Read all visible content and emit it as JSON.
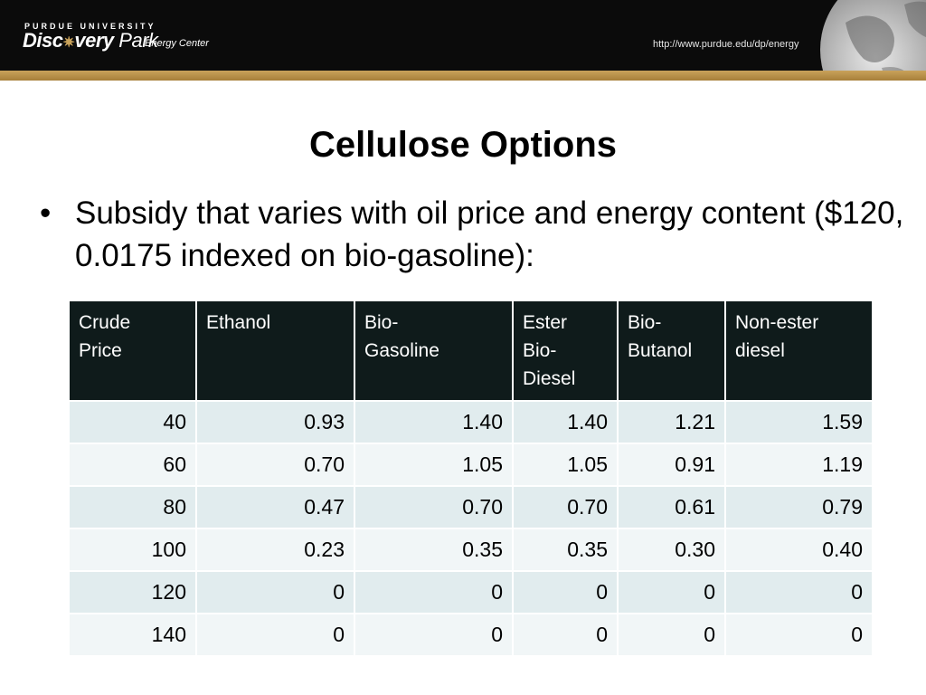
{
  "header": {
    "logo_top": "PURDUE UNIVERSITY",
    "logo_main_left": "Disc",
    "logo_main_right": "very",
    "logo_park": "Park",
    "logo_sub": "Energy Center",
    "url": "http://www.purdue.edu/dp/energy"
  },
  "slide": {
    "title": "Cellulose Options",
    "bullet": "Subsidy that varies with oil price and energy content ($120, 0.0175 indexed on bio-gasoline):"
  },
  "table": {
    "headers": [
      [
        "Crude",
        "Price"
      ],
      [
        "Ethanol"
      ],
      [
        "Bio-",
        "Gasoline"
      ],
      [
        "Ester",
        "Bio-",
        "Diesel"
      ],
      [
        "Bio-",
        "Butanol"
      ],
      [
        "Non-ester",
        "diesel"
      ]
    ],
    "rows": [
      [
        "40",
        "0.93",
        "1.40",
        "1.40",
        "1.21",
        "1.59"
      ],
      [
        "60",
        "0.70",
        "1.05",
        "1.05",
        "0.91",
        "1.19"
      ],
      [
        "80",
        "0.47",
        "0.70",
        "0.70",
        "0.61",
        "0.79"
      ],
      [
        "100",
        "0.23",
        "0.35",
        "0.35",
        "0.30",
        "0.40"
      ],
      [
        "120",
        "0",
        "0",
        "0",
        "0",
        "0"
      ],
      [
        "140",
        "0",
        "0",
        "0",
        "0",
        "0"
      ]
    ]
  },
  "colors": {
    "banner": "#0b0b0b",
    "accent_gold": "#c9a25a",
    "table_header": "#0f1b1b",
    "row_odd": "#e1ecee",
    "row_even": "#f1f6f7"
  },
  "icons": {
    "globe": "globe-icon",
    "bullet": "bullet-dot"
  }
}
